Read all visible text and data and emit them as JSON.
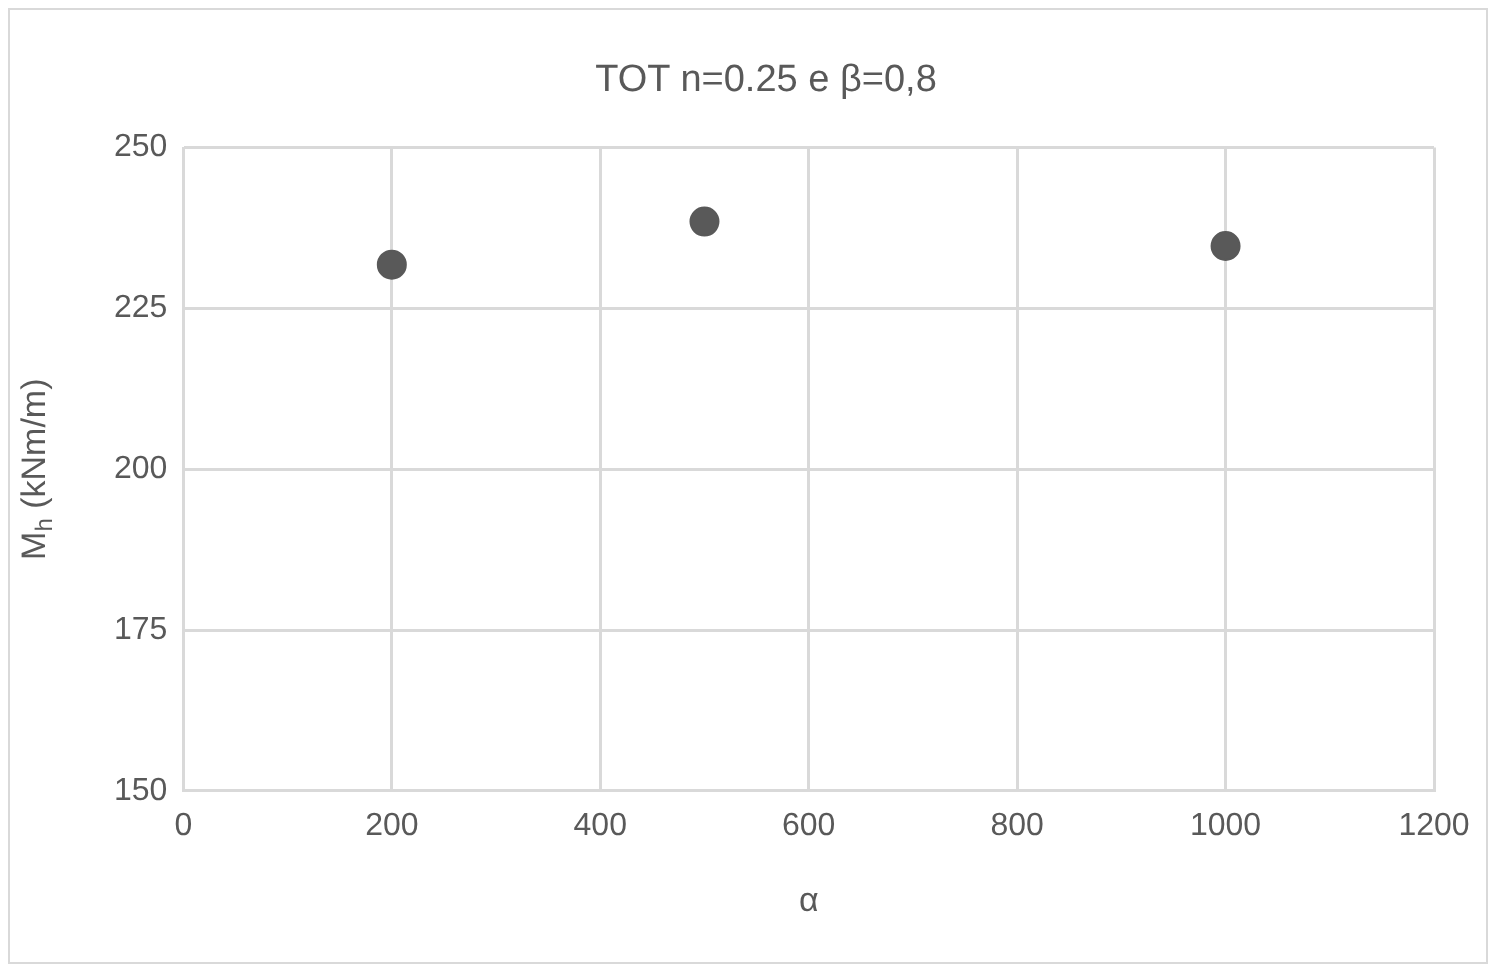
{
  "chart_data": {
    "type": "scatter",
    "title": "TOT n=0.25 e β=0,8",
    "xlabel": "α",
    "ylabel": "M$_{h}$ (kNm/m)",
    "x": [
      200,
      500,
      1000
    ],
    "series": [
      {
        "color": "#595959",
        "values": [
          231.8,
          238.5,
          234.7
        ]
      }
    ],
    "xlim": [
      0,
      1200
    ],
    "xticks": [
      0,
      200,
      400,
      600,
      800,
      1000,
      1200
    ],
    "ylim": [
      150,
      250
    ],
    "yticks": [
      150,
      175,
      200,
      225,
      250
    ],
    "grid": true,
    "legend": false,
    "marker": "circle"
  }
}
